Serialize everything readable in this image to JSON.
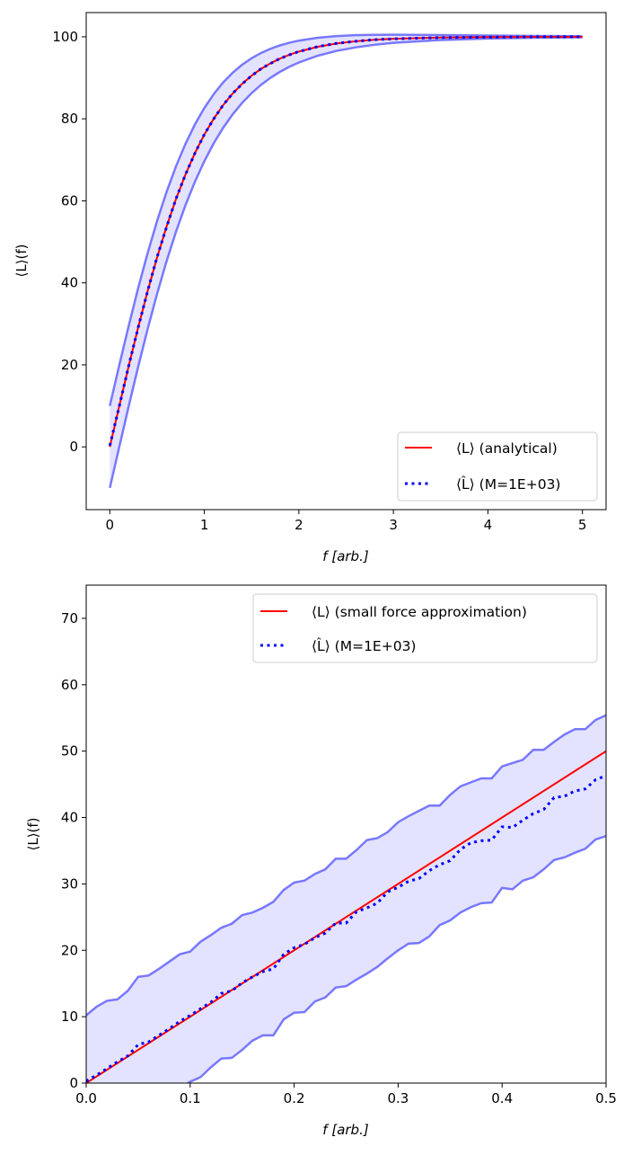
{
  "colors": {
    "analytical": "#ff0000",
    "estimate": "#0000ff",
    "band_fill": "#e3e3ff",
    "band_edge": "#7878ff"
  },
  "chart_data": [
    {
      "type": "line",
      "xlabel": "f [arb.]",
      "ylabel": "⟨L⟩(f)",
      "xlim": [
        -0.25,
        5.25
      ],
      "ylim": [
        -15.3,
        105.9
      ],
      "xticks": [
        "0",
        "1",
        "2",
        "3",
        "4",
        "5"
      ],
      "yticks": [
        "0",
        "20",
        "40",
        "60",
        "80",
        "100"
      ],
      "grid": false,
      "legend_position": "lower-right",
      "x": [
        0,
        0.1,
        0.2,
        0.3,
        0.4,
        0.5,
        0.6,
        0.7,
        0.8,
        0.9,
        1.0,
        1.1,
        1.2,
        1.3,
        1.4,
        1.5,
        1.6,
        1.7,
        1.8,
        1.9,
        2.0,
        2.2,
        2.4,
        2.6,
        2.8,
        3.0,
        3.5,
        4.0,
        4.5,
        5.0
      ],
      "series": [
        {
          "name": "⟨L⟩ (analytical)",
          "style": "solid",
          "values": [
            0,
            9.97,
            19.74,
            29.13,
            37.99,
            46.21,
            53.7,
            60.44,
            66.4,
            71.63,
            76.16,
            80.05,
            83.37,
            86.17,
            88.54,
            90.51,
            92.17,
            93.54,
            94.68,
            95.62,
            96.4,
            97.57,
            98.37,
            98.9,
            99.26,
            99.51,
            99.82,
            99.93,
            99.98,
            99.99
          ]
        },
        {
          "name": "⟨L̂⟩ (M=1E+03)",
          "style": "dotted",
          "values": [
            0.3,
            9.9,
            19.8,
            29.1,
            38.0,
            46.3,
            53.6,
            60.5,
            66.4,
            71.6,
            76.2,
            80.0,
            83.4,
            86.2,
            88.5,
            90.5,
            92.2,
            93.5,
            94.7,
            95.6,
            96.4,
            97.6,
            98.4,
            98.9,
            99.3,
            99.5,
            99.8,
            99.9,
            100.0,
            100.0
          ]
        }
      ],
      "band": {
        "upper": [
          10,
          19.92,
          29.54,
          38.7,
          47.24,
          55.08,
          62.14,
          68.41,
          73.88,
          78.61,
          82.64,
          86.04,
          88.89,
          91.24,
          93.19,
          94.76,
          96.05,
          97.08,
          97.9,
          98.55,
          99.06,
          99.76,
          100.17,
          100.38,
          100.47,
          100.5,
          100.42,
          100.3,
          100.2,
          100.12
        ],
        "lower": [
          -10,
          0.02,
          9.94,
          19.56,
          28.74,
          37.34,
          45.26,
          52.47,
          58.92,
          64.65,
          69.68,
          74.06,
          77.85,
          81.1,
          83.89,
          86.26,
          88.29,
          90.0,
          91.46,
          92.69,
          93.74,
          95.38,
          96.57,
          97.42,
          98.05,
          98.52,
          99.22,
          99.56,
          99.76,
          99.86
        ]
      }
    },
    {
      "type": "line",
      "xlabel": "f [arb.]",
      "ylabel": "⟨L⟩(f)",
      "xlim": [
        0,
        0.5
      ],
      "ylim": [
        0,
        75
      ],
      "xticks": [
        "0.0",
        "0.1",
        "0.2",
        "0.3",
        "0.4",
        "0.5"
      ],
      "yticks": [
        "0",
        "10",
        "20",
        "30",
        "40",
        "50",
        "60",
        "70"
      ],
      "grid": false,
      "legend_position": "top-right",
      "x": [
        0,
        0.01,
        0.02,
        0.03,
        0.04,
        0.05,
        0.06,
        0.07,
        0.08,
        0.09,
        0.1,
        0.11,
        0.12,
        0.13,
        0.14,
        0.15,
        0.16,
        0.17,
        0.18,
        0.19,
        0.2,
        0.21,
        0.22,
        0.23,
        0.24,
        0.25,
        0.26,
        0.27,
        0.28,
        0.29,
        0.3,
        0.31,
        0.32,
        0.33,
        0.34,
        0.35,
        0.36,
        0.37,
        0.38,
        0.39,
        0.4,
        0.41,
        0.42,
        0.43,
        0.44,
        0.45,
        0.46,
        0.47,
        0.48,
        0.49,
        0.5
      ],
      "series": [
        {
          "name": "⟨L⟩ (small force approximation)",
          "style": "solid",
          "x": [
            0,
            0.5
          ],
          "values": [
            0,
            50
          ]
        },
        {
          "name": "⟨L̂⟩ (M=1E+03)",
          "style": "dotted",
          "values": [
            0.3,
            1.2,
            2.2,
            3.2,
            4.1,
            5.8,
            6.2,
            7.2,
            8.2,
            9.3,
            10.2,
            11.2,
            12.2,
            13.5,
            13.9,
            15.1,
            16.0,
            16.8,
            17.2,
            19.4,
            20.4,
            20.9,
            21.9,
            22.6,
            24.1,
            24.1,
            25.8,
            26.4,
            27.1,
            28.8,
            29.5,
            30.4,
            30.8,
            32.0,
            32.9,
            33.5,
            35.2,
            36.2,
            36.5,
            36.6,
            38.6,
            38.5,
            39.6,
            40.6,
            41.2,
            43.0,
            43.2,
            44.0,
            44.3,
            45.7,
            46.3
          ]
        }
      ],
      "band": {
        "upper": [
          10.2,
          11.5,
          12.4,
          12.6,
          13.9,
          16.0,
          16.2,
          17.2,
          18.3,
          19.4,
          19.8,
          21.3,
          22.3,
          23.4,
          24.0,
          25.3,
          25.7,
          26.4,
          27.3,
          29.1,
          30.2,
          30.5,
          31.5,
          32.2,
          33.8,
          33.8,
          35.1,
          36.6,
          36.9,
          37.8,
          39.3,
          40.2,
          41.0,
          41.8,
          41.8,
          43.4,
          44.7,
          45.3,
          45.9,
          45.9,
          47.7,
          48.2,
          48.7,
          50.2,
          50.2,
          51.4,
          52.5,
          53.3,
          53.3,
          54.7,
          55.4
        ],
        "lower": [
          -9.6,
          -9.1,
          -8.2,
          -6.2,
          -5.7,
          -4.4,
          -3.8,
          -2.8,
          -1.9,
          -0.8,
          0.2,
          0.9,
          2.4,
          3.7,
          3.8,
          5.0,
          6.4,
          7.2,
          7.2,
          9.6,
          10.6,
          10.7,
          12.3,
          12.9,
          14.4,
          14.6,
          15.6,
          16.5,
          17.5,
          18.8,
          20.0,
          21.0,
          21.1,
          22.1,
          23.8,
          24.5,
          25.7,
          26.5,
          27.1,
          27.2,
          29.4,
          29.2,
          30.5,
          31.0,
          32.2,
          33.6,
          34.0,
          34.7,
          35.3,
          36.7,
          37.2
        ]
      }
    }
  ]
}
